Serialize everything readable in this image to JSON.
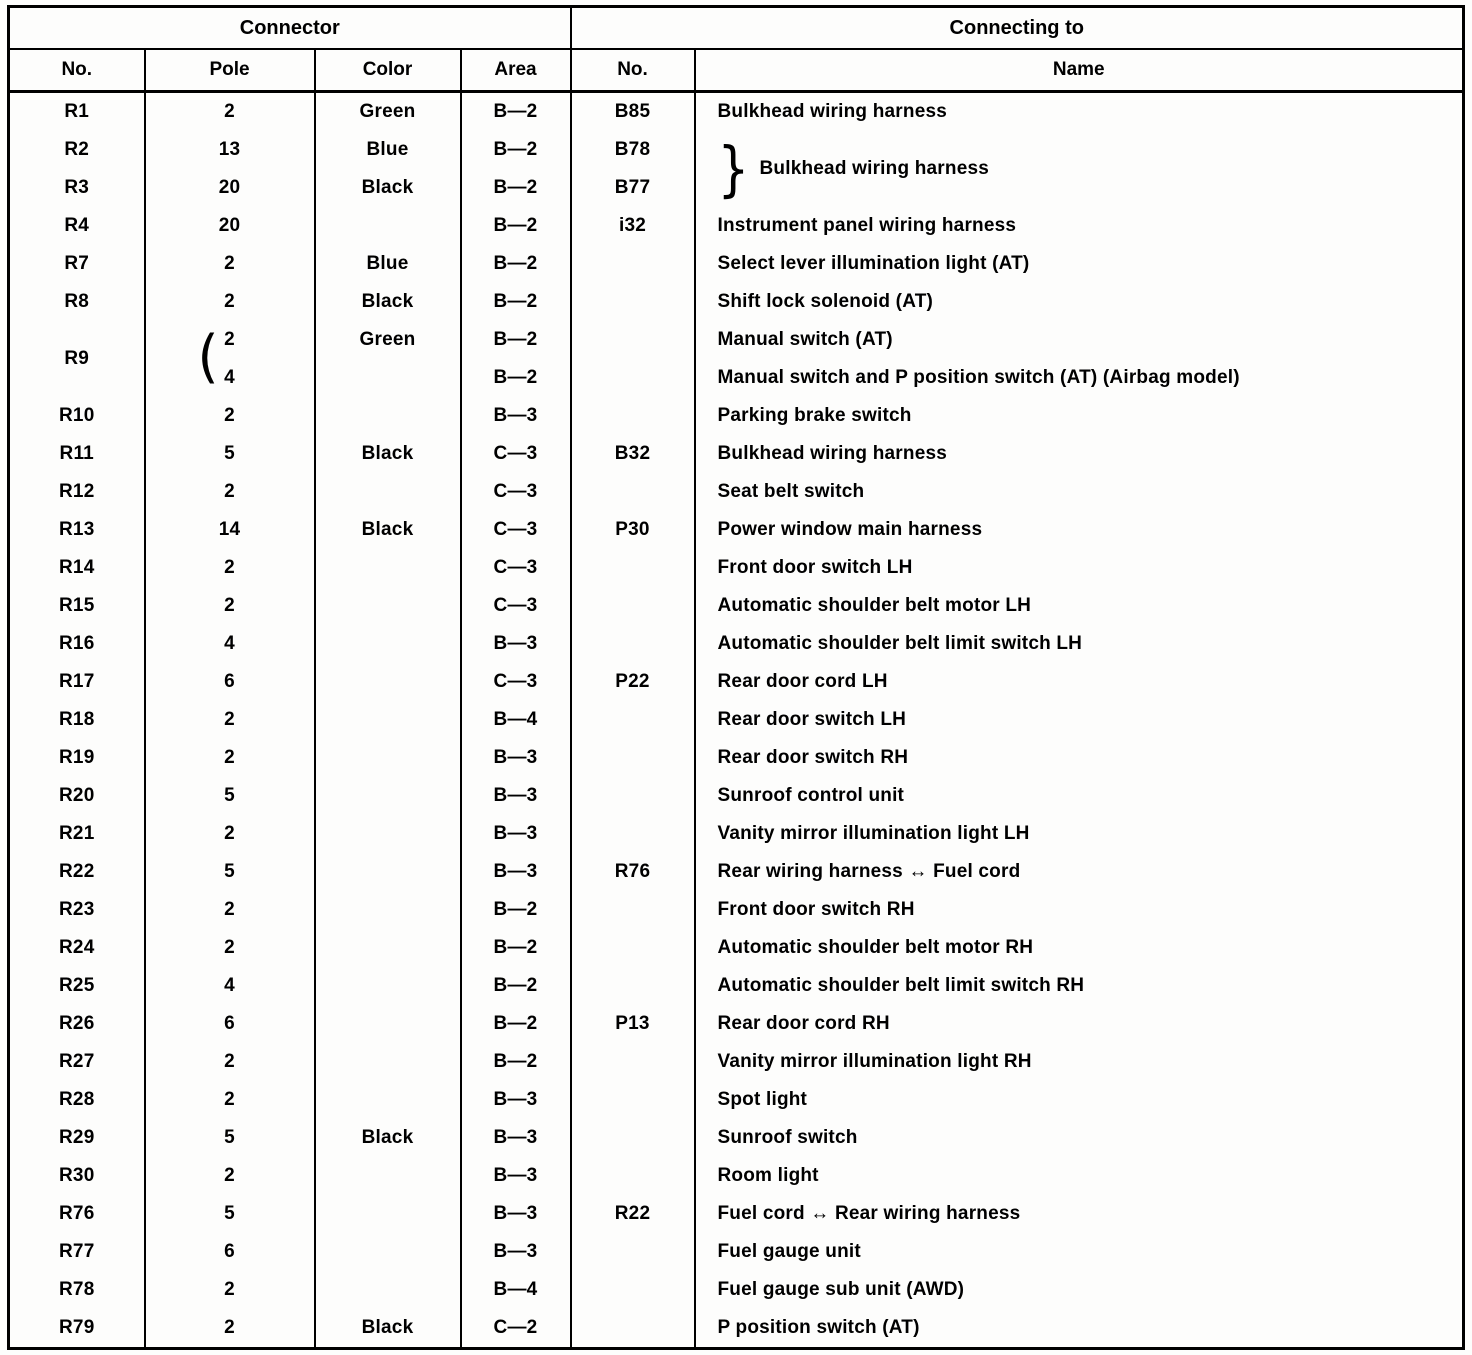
{
  "table": {
    "header_groups": [
      {
        "label": "Connector",
        "span": 4
      },
      {
        "label": "Connecting to",
        "span": 2
      }
    ],
    "columns": [
      "No.",
      "Pole",
      "Color",
      "Area",
      "No.",
      "Name"
    ],
    "glyphs": {
      "pole_brace": "(",
      "name_brace": "}"
    },
    "rows": [
      {
        "no": "R1",
        "pole": "2",
        "color": "Green",
        "area": "B—2",
        "cn": "B85",
        "name": "Bulkhead wiring harness"
      },
      {
        "no": "R2",
        "pole": "13",
        "color": "Blue",
        "area": "B—2",
        "cn": "B78",
        "name": "Bulkhead wiring harness",
        "name_span": 2,
        "name_brace": true
      },
      {
        "no": "R3",
        "pole": "20",
        "color": "Black",
        "area": "B—2",
        "cn": "B77",
        "name": null
      },
      {
        "no": "R4",
        "pole": "20",
        "color": "",
        "area": "B—2",
        "cn": "i32",
        "name": "Instrument panel wiring harness"
      },
      {
        "no": "R7",
        "pole": "2",
        "color": "Blue",
        "area": "B—2",
        "cn": "",
        "name": "Select lever illumination light (AT)"
      },
      {
        "no": "R8",
        "pole": "2",
        "color": "Black",
        "area": "B—2",
        "cn": "",
        "name": "Shift lock solenoid (AT)"
      },
      {
        "no": "R9",
        "no_span": 2,
        "pole": "2",
        "color": "Green",
        "area": "B—2",
        "cn": "",
        "name": "Manual switch (AT)",
        "pole_brace": true
      },
      {
        "no": null,
        "pole": "4",
        "color": "",
        "area": "B—2",
        "cn": "",
        "name": "Manual switch and P position switch (AT) (Airbag model)"
      },
      {
        "no": "R10",
        "pole": "2",
        "color": "",
        "area": "B—3",
        "cn": "",
        "name": "Parking brake switch"
      },
      {
        "no": "R11",
        "pole": "5",
        "color": "Black",
        "area": "C—3",
        "cn": "B32",
        "name": "Bulkhead wiring harness"
      },
      {
        "no": "R12",
        "pole": "2",
        "color": "",
        "area": "C—3",
        "cn": "",
        "name": "Seat belt switch"
      },
      {
        "no": "R13",
        "pole": "14",
        "color": "Black",
        "area": "C—3",
        "cn": "P30",
        "name": "Power window main harness"
      },
      {
        "no": "R14",
        "pole": "2",
        "color": "",
        "area": "C—3",
        "cn": "",
        "name": "Front door switch LH"
      },
      {
        "no": "R15",
        "pole": "2",
        "color": "",
        "area": "C—3",
        "cn": "",
        "name": "Automatic shoulder belt motor LH"
      },
      {
        "no": "R16",
        "pole": "4",
        "color": "",
        "area": "B—3",
        "cn": "",
        "name": "Automatic shoulder belt limit switch LH"
      },
      {
        "no": "R17",
        "pole": "6",
        "color": "",
        "area": "C—3",
        "cn": "P22",
        "name": "Rear door cord LH"
      },
      {
        "no": "R18",
        "pole": "2",
        "color": "",
        "area": "B—4",
        "cn": "",
        "name": "Rear door switch LH"
      },
      {
        "no": "R19",
        "pole": "2",
        "color": "",
        "area": "B—3",
        "cn": "",
        "name": "Rear door switch RH"
      },
      {
        "no": "R20",
        "pole": "5",
        "color": "",
        "area": "B—3",
        "cn": "",
        "name": "Sunroof control unit"
      },
      {
        "no": "R21",
        "pole": "2",
        "color": "",
        "area": "B—3",
        "cn": "",
        "name": "Vanity mirror illumination light LH"
      },
      {
        "no": "R22",
        "pole": "5",
        "color": "",
        "area": "B—3",
        "cn": "R76",
        "name": "Rear wiring harness ↔ Fuel cord"
      },
      {
        "no": "R23",
        "pole": "2",
        "color": "",
        "area": "B—2",
        "cn": "",
        "name": "Front door switch RH"
      },
      {
        "no": "R24",
        "pole": "2",
        "color": "",
        "area": "B—2",
        "cn": "",
        "name": "Automatic shoulder belt motor RH"
      },
      {
        "no": "R25",
        "pole": "4",
        "color": "",
        "area": "B—2",
        "cn": "",
        "name": "Automatic shoulder belt limit switch RH"
      },
      {
        "no": "R26",
        "pole": "6",
        "color": "",
        "area": "B—2",
        "cn": "P13",
        "name": "Rear door cord RH"
      },
      {
        "no": "R27",
        "pole": "2",
        "color": "",
        "area": "B—2",
        "cn": "",
        "name": "Vanity mirror illumination light RH"
      },
      {
        "no": "R28",
        "pole": "2",
        "color": "",
        "area": "B—3",
        "cn": "",
        "name": "Spot light"
      },
      {
        "no": "R29",
        "pole": "5",
        "color": "Black",
        "area": "B—3",
        "cn": "",
        "name": "Sunroof switch"
      },
      {
        "no": "R30",
        "pole": "2",
        "color": "",
        "area": "B—3",
        "cn": "",
        "name": "Room light"
      },
      {
        "no": "R76",
        "pole": "5",
        "color": "",
        "area": "B—3",
        "cn": "R22",
        "name": "Fuel cord ↔ Rear wiring harness"
      },
      {
        "no": "R77",
        "pole": "6",
        "color": "",
        "area": "B—3",
        "cn": "",
        "name": "Fuel gauge unit"
      },
      {
        "no": "R78",
        "pole": "2",
        "color": "",
        "area": "B—4",
        "cn": "",
        "name": "Fuel gauge sub unit (AWD)"
      },
      {
        "no": "R79",
        "pole": "2",
        "color": "Black",
        "area": "C—2",
        "cn": "",
        "name": "P position switch (AT)"
      }
    ]
  }
}
